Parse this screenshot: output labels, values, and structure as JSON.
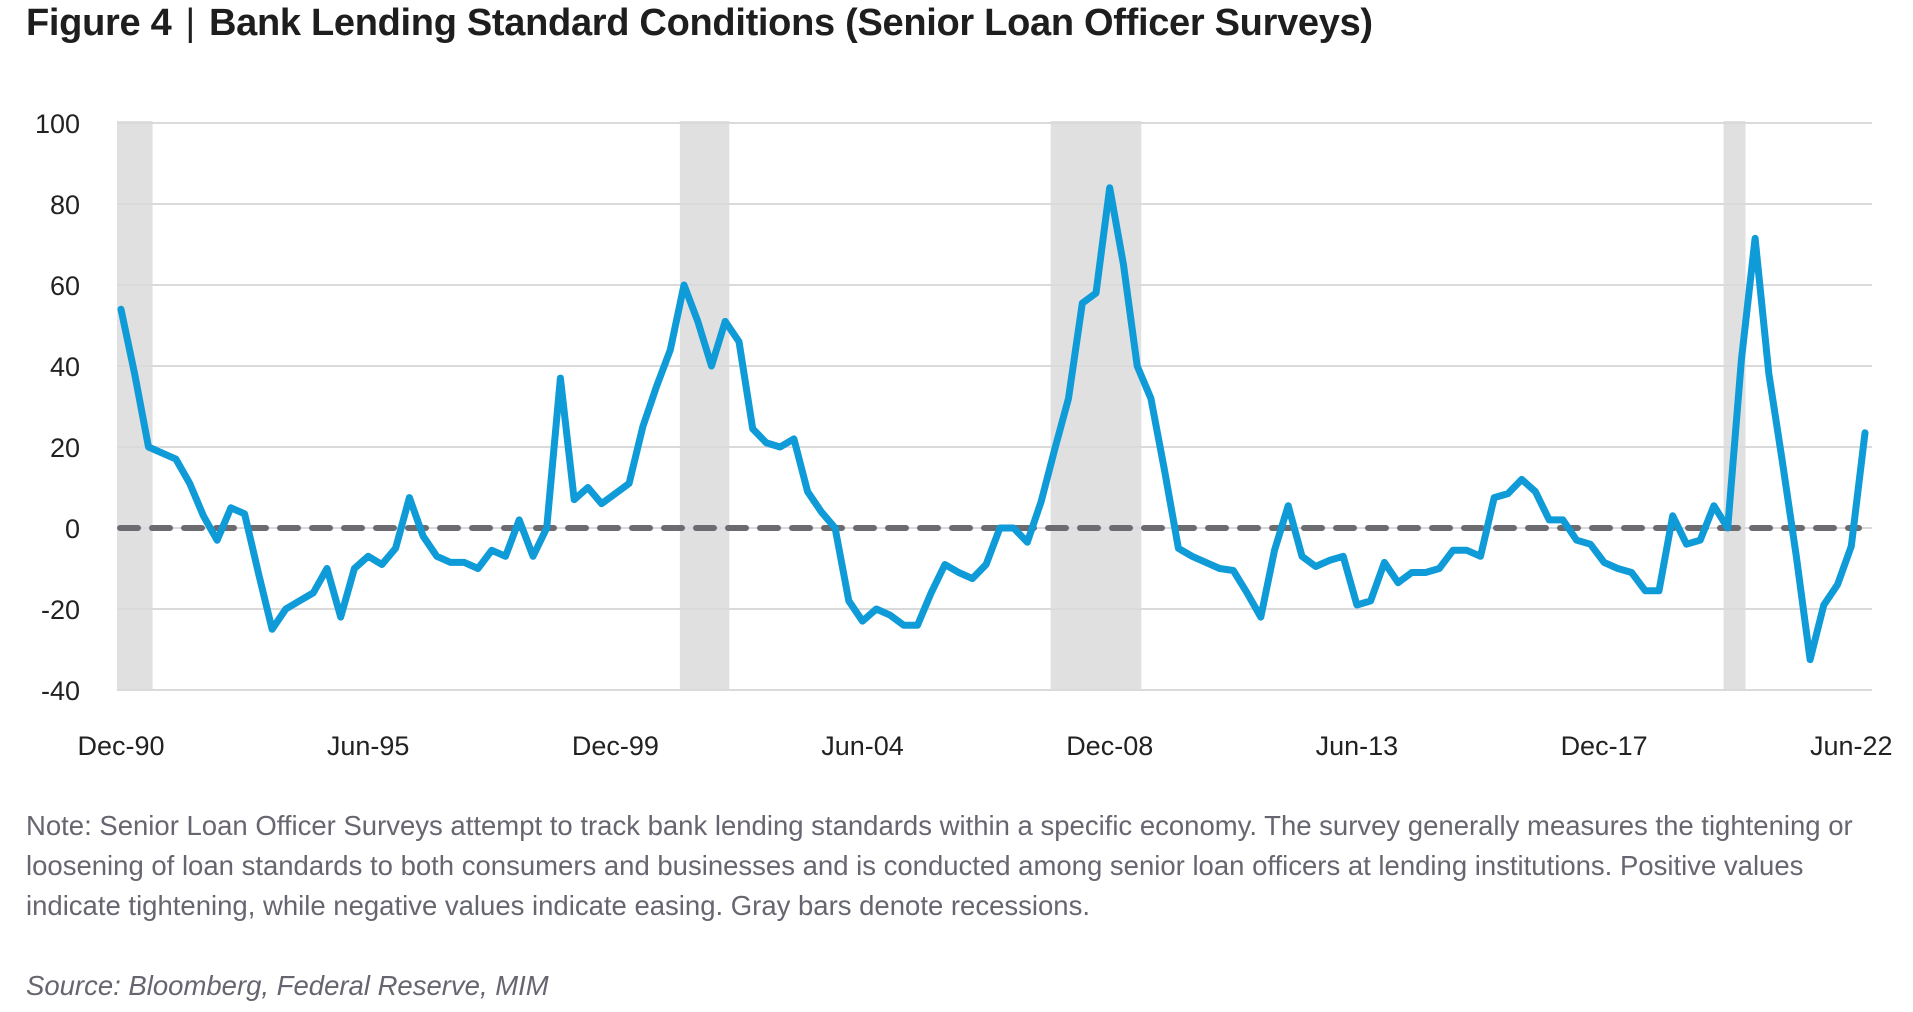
{
  "figure": {
    "label": "Figure 4",
    "separator": "|",
    "title": "Bank Lending Standard Conditions (Senior Loan Officer Surveys)"
  },
  "note": "Note: Senior Loan Officer Surveys attempt to track bank lending standards within a specific economy. The survey generally measures the tightening or loosening of loan standards to both consumers and businesses and is conducted among senior loan officers at lending institutions. Positive values indicate tightening, while negative values indicate easing. Gray bars denote recessions.",
  "source": "Source: Bloomberg, Federal Reserve, MIM",
  "colors": {
    "line": "#0e9bd8",
    "zero_line": "#6b6b70",
    "recession": "#e0e0e0",
    "grid": "#dadada"
  },
  "chart_data": {
    "type": "line",
    "title": "Bank Lending Standard Conditions (Senior Loan Officer Surveys)",
    "xlabel": "",
    "ylabel": "",
    "frequency": "quarterly",
    "x_start": "Dec-90",
    "x_end": "Jun-22",
    "ylim": [
      -40,
      100
    ],
    "yticks": [
      100,
      80,
      60,
      40,
      20,
      0,
      -20,
      -40
    ],
    "ytick_labels": [
      "100",
      "80",
      "60",
      "40",
      "20",
      "0",
      "-20",
      "-40"
    ],
    "xtick_labels": [
      "Dec-90",
      "Jun-95",
      "Dec-99",
      "Jun-04",
      "Dec-08",
      "Jun-13",
      "Dec-17",
      "Jun-22"
    ],
    "xtick_index": [
      0,
      18,
      36,
      54,
      72,
      90,
      108,
      126
    ],
    "grid": true,
    "reference_line": {
      "y": 0,
      "style": "dashed"
    },
    "recessions_index": [
      [
        0,
        2
      ],
      [
        41,
        44
      ],
      [
        68,
        74
      ],
      [
        117,
        118
      ]
    ],
    "series": [
      {
        "name": "Bank lending standards",
        "values": [
          54,
          38,
          20,
          18.5,
          17,
          11,
          3,
          -3,
          5,
          3.5,
          -11,
          -25,
          -20,
          -18,
          -16,
          -10,
          -22,
          -10,
          -7,
          -9,
          -5,
          7.5,
          -2,
          -7,
          -8.5,
          -8.5,
          -10,
          -5.5,
          -7,
          2,
          -7,
          0,
          37,
          7,
          10,
          6,
          8.5,
          11,
          25,
          35,
          44,
          60,
          51,
          40,
          51,
          46,
          24.5,
          21,
          20,
          22,
          9,
          4,
          0,
          -18,
          -23,
          -20,
          -21.5,
          -24,
          -24,
          -16,
          -9,
          -11,
          -12.5,
          -9,
          0,
          0,
          -3.5,
          6.5,
          19.5,
          32,
          55.5,
          58,
          84,
          65,
          40,
          32,
          14,
          -5,
          -7,
          -8.5,
          -10,
          -10.5,
          -16,
          -22,
          -5.5,
          5.5,
          -7,
          -9.5,
          -8,
          -7,
          -19,
          -18,
          -8.5,
          -13.5,
          -11,
          -11,
          -10,
          -5.5,
          -5.5,
          -7,
          7.5,
          8.5,
          12,
          9,
          2,
          2,
          -3,
          -4,
          -8.5,
          -10,
          -11,
          -15.5,
          -15.5,
          3,
          -4,
          -3,
          5.5,
          0,
          41.5,
          71.5,
          38,
          16,
          -7,
          -32.5,
          -19,
          -14,
          -4.5,
          23.5
        ]
      }
    ]
  }
}
